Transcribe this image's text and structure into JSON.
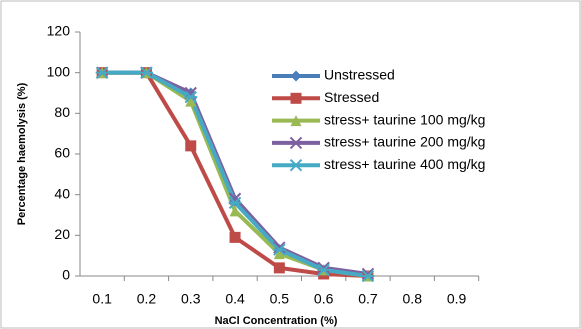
{
  "chart_data": {
    "type": "line",
    "y_label": "Percentage haemolysis (%)",
    "x_label": "NaCl Concentration (%)",
    "categories": [
      "0.1",
      "0.2",
      "0.3",
      "0.4",
      "0.5",
      "0.6",
      "0.7",
      "0.8",
      "0.9"
    ],
    "ylim": [
      0,
      120
    ],
    "yticks": [
      0,
      20,
      40,
      60,
      80,
      100,
      120
    ],
    "grid": false,
    "series": [
      {
        "name": "Unstressed",
        "color": "#4a7ebb",
        "marker": "diamond",
        "values": [
          100,
          100,
          90,
          37,
          13,
          3,
          0,
          null,
          null
        ]
      },
      {
        "name": "Stressed",
        "color": "#be4b48",
        "marker": "square",
        "values": [
          100,
          100,
          64,
          19,
          4,
          1,
          0,
          null,
          null
        ]
      },
      {
        "name": "stress+ taurine 100 mg/kg",
        "color": "#98b954",
        "marker": "triangle",
        "values": [
          100,
          100,
          86,
          32,
          11,
          3,
          0,
          null,
          null
        ]
      },
      {
        "name": "stress+ taurine 200 mg/kg",
        "color": "#7d60a0",
        "marker": "x",
        "values": [
          100,
          100,
          90,
          38,
          14,
          4,
          1,
          null,
          null
        ]
      },
      {
        "name": "stress+ taurine 400 mg/kg",
        "color": "#46aac5",
        "marker": "star",
        "values": [
          100,
          100,
          88,
          36,
          13,
          3,
          0,
          null,
          null
        ]
      }
    ]
  }
}
